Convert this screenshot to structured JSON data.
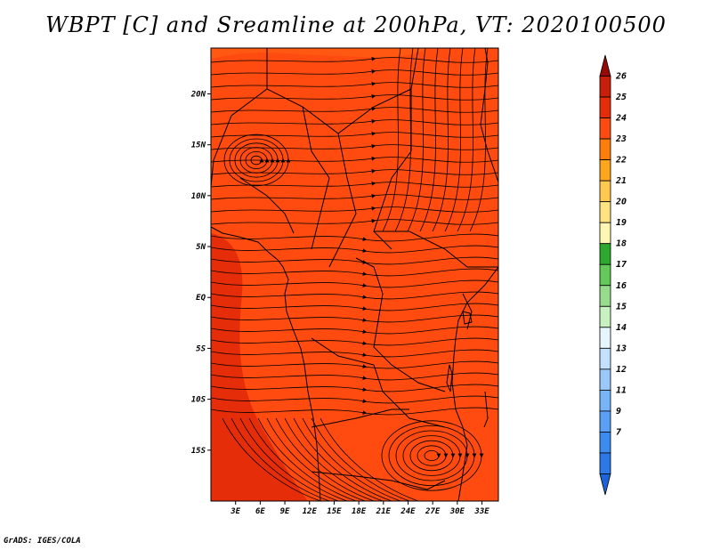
{
  "title": "WBPT [C] and Sreamline at 200hPa, VT: 2020100500",
  "credit": "GrADS: IGES/COLA",
  "chart_data": {
    "type": "heatmap",
    "title": "WBPT [C] and Sreamline at 200hPa, VT: 2020100500",
    "variable": "WBPT [C] at 200hPa with streamlines",
    "valid_time": "2020100500",
    "x_axis": {
      "range": [
        0,
        35
      ],
      "ticks": [
        {
          "value": 3,
          "label": "3E"
        },
        {
          "value": 6,
          "label": "6E"
        },
        {
          "value": 9,
          "label": "9E"
        },
        {
          "value": 12,
          "label": "12E"
        },
        {
          "value": 15,
          "label": "15E"
        },
        {
          "value": 18,
          "label": "18E"
        },
        {
          "value": 21,
          "label": "21E"
        },
        {
          "value": 24,
          "label": "24E"
        },
        {
          "value": 27,
          "label": "27E"
        },
        {
          "value": 30,
          "label": "30E"
        },
        {
          "value": 33,
          "label": "33E"
        }
      ]
    },
    "y_axis": {
      "range": [
        -20,
        24.5
      ],
      "ticks": [
        {
          "value": 20,
          "label": "20N"
        },
        {
          "value": 15,
          "label": "15N"
        },
        {
          "value": 10,
          "label": "10N"
        },
        {
          "value": 5,
          "label": "5N"
        },
        {
          "value": 0,
          "label": "EQ"
        },
        {
          "value": -5,
          "label": "5S"
        },
        {
          "value": -10,
          "label": "10S"
        },
        {
          "value": -15,
          "label": "15S"
        }
      ]
    },
    "colorbar": {
      "placement": "right",
      "levels": [
        "7",
        "9",
        "11",
        "12",
        "13",
        "14",
        "15",
        "16",
        "17",
        "18",
        "19",
        "20",
        "21",
        "22",
        "23",
        "24",
        "25",
        "26"
      ],
      "colors": [
        "#1e64d8",
        "#2b78e6",
        "#3c8cf0",
        "#5aa0f5",
        "#78b4f8",
        "#9bc8fb",
        "#c3e0fc",
        "#e6f6ff",
        "#c8f0c0",
        "#96dc8c",
        "#64c85a",
        "#2ea82e",
        "#fff5b4",
        "#ffe382",
        "#ffc850",
        "#ffa51e",
        "#ff7d0a",
        "#ff4b0f",
        "#e62d0a",
        "#c81e0a",
        "#960a05"
      ]
    },
    "field_summary": {
      "background_value_range": [
        23,
        24
      ],
      "west_coast_band_range": [
        24,
        25
      ],
      "north_edge_patch_range": [
        22,
        23
      ]
    }
  }
}
